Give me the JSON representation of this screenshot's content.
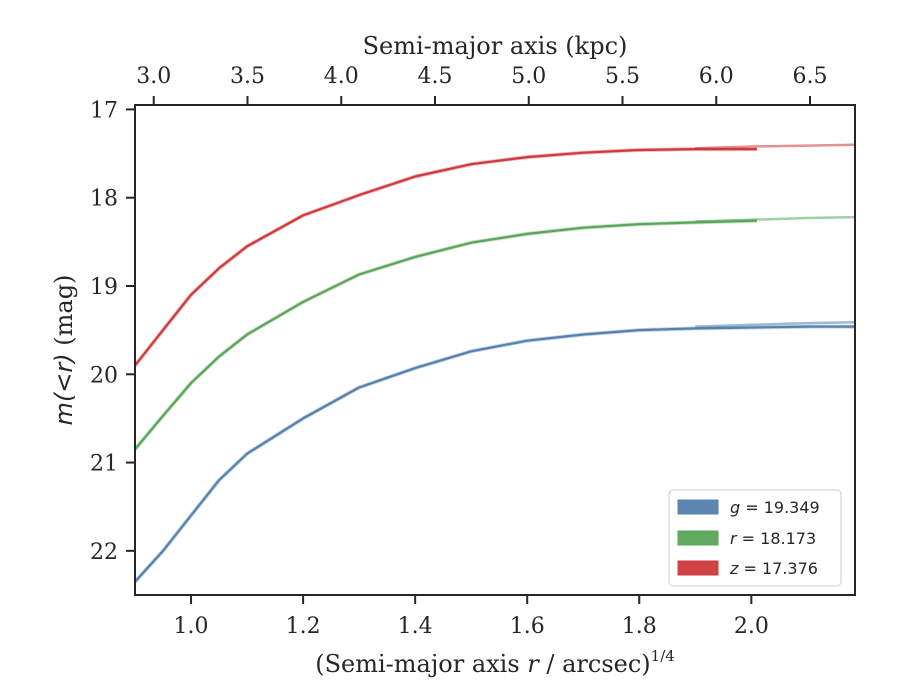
{
  "chart_data": {
    "type": "line",
    "xlabel_main": "(Semi-major axis ",
    "xlabel_var": "r",
    "xlabel_unit": " / arcsec)",
    "xlabel_exp": "1/4",
    "x2label": "Semi-major axis (kpc)",
    "ylabel_main": "m(<r)",
    "ylabel_unit": " (mag)",
    "xlim": [
      0.9,
      2.185
    ],
    "ylim": [
      22.5,
      16.95
    ],
    "y_inverted": true,
    "x2lim": [
      2.9,
      6.74
    ],
    "x_ticks": [
      1.0,
      1.2,
      1.4,
      1.6,
      1.8,
      2.0
    ],
    "x_tick_labels": [
      "1.0",
      "1.2",
      "1.4",
      "1.6",
      "1.8",
      "2.0"
    ],
    "x2_ticks": [
      3.0,
      3.5,
      4.0,
      4.5,
      5.0,
      5.5,
      6.0,
      6.5
    ],
    "x2_tick_labels": [
      "3.0",
      "3.5",
      "4.0",
      "4.5",
      "5.0",
      "5.5",
      "6.0",
      "6.5"
    ],
    "y_ticks": [
      17,
      18,
      19,
      20,
      21,
      22
    ],
    "y_tick_labels": [
      "17",
      "18",
      "19",
      "20",
      "21",
      "22"
    ],
    "grid": false,
    "legend_position": "lower-right",
    "series": [
      {
        "name": "g = 19.349",
        "legend_var": "g",
        "legend_value": "19.349",
        "color": "#5481ad",
        "points": [
          [
            0.9,
            22.35
          ],
          [
            0.95,
            22.0
          ],
          [
            1.0,
            21.6
          ],
          [
            1.05,
            21.2
          ],
          [
            1.1,
            20.9
          ],
          [
            1.2,
            20.5
          ],
          [
            1.3,
            20.15
          ],
          [
            1.4,
            19.93
          ],
          [
            1.5,
            19.74
          ],
          [
            1.6,
            19.62
          ],
          [
            1.7,
            19.55
          ],
          [
            1.8,
            19.5
          ],
          [
            1.9,
            19.48
          ],
          [
            2.0,
            19.47
          ],
          [
            2.1,
            19.46
          ],
          [
            2.185,
            19.46
          ]
        ],
        "model": [
          [
            1.9,
            19.46
          ],
          [
            2.0,
            19.44
          ],
          [
            2.1,
            19.42
          ],
          [
            2.185,
            19.41
          ]
        ]
      },
      {
        "name": "r = 18.173",
        "legend_var": "r",
        "legend_value": "18.173",
        "color": "#5aa55a",
        "points": [
          [
            0.9,
            20.85
          ],
          [
            0.95,
            20.47
          ],
          [
            1.0,
            20.1
          ],
          [
            1.05,
            19.8
          ],
          [
            1.1,
            19.55
          ],
          [
            1.2,
            19.18
          ],
          [
            1.3,
            18.87
          ],
          [
            1.4,
            18.67
          ],
          [
            1.5,
            18.51
          ],
          [
            1.6,
            18.41
          ],
          [
            1.7,
            18.34
          ],
          [
            1.8,
            18.3
          ],
          [
            1.9,
            18.28
          ],
          [
            2.01,
            18.26
          ]
        ],
        "model": [
          [
            1.9,
            18.27
          ],
          [
            2.0,
            18.25
          ],
          [
            2.1,
            18.23
          ],
          [
            2.185,
            18.22
          ]
        ]
      },
      {
        "name": "z = 17.376",
        "legend_var": "z",
        "legend_value": "17.376",
        "color": "#d0393b",
        "points": [
          [
            0.9,
            19.9
          ],
          [
            0.95,
            19.5
          ],
          [
            1.0,
            19.1
          ],
          [
            1.05,
            18.8
          ],
          [
            1.1,
            18.55
          ],
          [
            1.2,
            18.2
          ],
          [
            1.3,
            17.97
          ],
          [
            1.4,
            17.76
          ],
          [
            1.5,
            17.62
          ],
          [
            1.6,
            17.54
          ],
          [
            1.7,
            17.49
          ],
          [
            1.8,
            17.46
          ],
          [
            1.9,
            17.45
          ],
          [
            2.01,
            17.45
          ]
        ],
        "model": [
          [
            1.9,
            17.44
          ],
          [
            2.0,
            17.42
          ],
          [
            2.1,
            17.41
          ],
          [
            2.185,
            17.4
          ]
        ]
      }
    ]
  }
}
